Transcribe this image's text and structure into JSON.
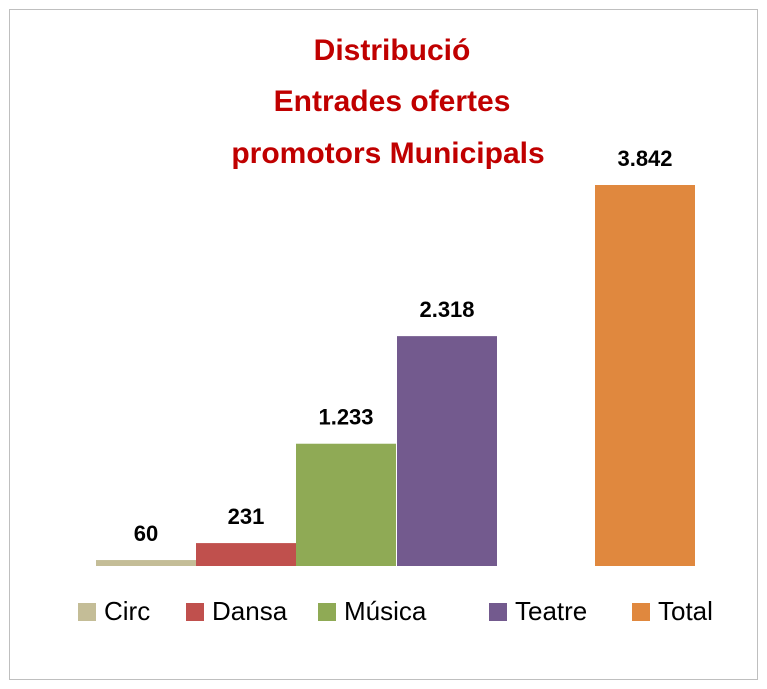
{
  "chart_data": {
    "type": "bar",
    "title": [
      "Distribució",
      "Entrades ofertes",
      "promotors Municipals"
    ],
    "series": [
      {
        "name": "Circ",
        "color": "#c4bd97",
        "values": [
          60
        ],
        "value_labels": [
          "60"
        ]
      },
      {
        "name": "Dansa",
        "color": "#c0504d",
        "values": [
          231
        ],
        "value_labels": [
          "231"
        ]
      },
      {
        "name": "Música",
        "color": "#8faa55",
        "values": [
          1233
        ],
        "value_labels": [
          "1.233"
        ]
      },
      {
        "name": "Teatre",
        "color": "#735a8e",
        "values": [
          2318
        ],
        "value_labels": [
          "2.318"
        ]
      },
      {
        "name": "Total",
        "color": "#e0883e",
        "values": [
          3842
        ],
        "value_labels": [
          "3.842"
        ]
      }
    ],
    "legend": "bottom"
  }
}
